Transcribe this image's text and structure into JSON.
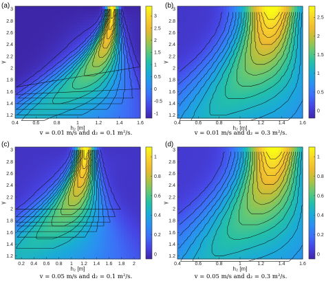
{
  "chart_data": [
    {
      "type": "heatmap",
      "panel": "(a)",
      "caption": "v = 0.01 m/s and d₂ = 0.1 m²/s.",
      "xlabel": "h₂ [m]",
      "ylabel": "γ",
      "xlim": [
        0.4,
        1.6
      ],
      "ylim": [
        1.15,
        3.05
      ],
      "xticks": [
        "0.4",
        "0.6",
        "0.8",
        "1",
        "1.2",
        "1.4",
        "1.6"
      ],
      "yticks": [
        "1.2",
        "1.4",
        "1.6",
        "1.8",
        "2",
        "2.2",
        "2.4",
        "2.6",
        "2.8",
        "3"
      ],
      "colorbar_ticks": [
        "-1",
        "-0.5",
        "0",
        "0.5",
        "1",
        "1.5",
        "2",
        "2.5",
        "3"
      ],
      "colorbar_range": [
        -1.2,
        3.4
      ],
      "peak": {
        "x": 1.33,
        "y": 3.0,
        "value": 3.3
      }
    },
    {
      "type": "heatmap",
      "panel": "(b)",
      "caption": "v = 0.01 m/s and d₂ = 0.3 m²/s.",
      "xlabel": "h₂ [m]",
      "ylabel": "γ",
      "xlim": [
        0.4,
        1.6
      ],
      "ylim": [
        1.15,
        3.05
      ],
      "xticks": [
        "0.4",
        "0.6",
        "0.8",
        "1",
        "1.2",
        "1.4",
        "1.6"
      ],
      "yticks": [
        "1.2",
        "1.4",
        "1.6",
        "1.8",
        "2",
        "2.2",
        "2.4",
        "2.6",
        "2.8",
        "3"
      ],
      "colorbar_ticks": [
        "0",
        "0.5",
        "1",
        "1.5",
        "2",
        "2.5"
      ],
      "colorbar_range": [
        -0.2,
        2.8
      ],
      "peak": {
        "x": 1.3,
        "y": 2.95,
        "value": 2.6
      }
    },
    {
      "type": "heatmap",
      "panel": "(c)",
      "caption": "v = 0.05 m/s and d₂ = 0.1 m²/s.",
      "xlabel": "h₂ [m]",
      "ylabel": "γ",
      "xlim": [
        0.1,
        2.1
      ],
      "ylim": [
        1.15,
        3.05
      ],
      "xticks": [
        "0.2",
        "0.4",
        "0.6",
        "0.8",
        "1",
        "1.2",
        "1.4",
        "1.6",
        "1.8",
        "2"
      ],
      "yticks": [
        "1.2",
        "1.4",
        "1.6",
        "1.8",
        "2",
        "2.2",
        "2.4",
        "2.6",
        "2.8",
        "3"
      ],
      "colorbar_ticks": [
        "0",
        "0.2",
        "0.4",
        "0.6",
        "0.8",
        "1"
      ],
      "colorbar_range": [
        -0.05,
        1.1
      ],
      "peak": {
        "x": 1.22,
        "y": 3.0,
        "value": 1.05
      }
    },
    {
      "type": "heatmap",
      "panel": "(d)",
      "caption": "v = 0.05 m/s and d₂ = 0.3 m²/s.",
      "xlabel": "h₂ [m]",
      "ylabel": "γ",
      "xlim": [
        0.4,
        1.6
      ],
      "ylim": [
        1.15,
        3.05
      ],
      "xticks": [
        "0.4",
        "0.6",
        "0.8",
        "1",
        "1.2",
        "1.4",
        "1.6"
      ],
      "yticks": [
        "1.2",
        "1.4",
        "1.6",
        "1.8",
        "2",
        "2.2",
        "2.4",
        "2.6",
        "2.8",
        "3"
      ],
      "colorbar_ticks": [
        "0",
        "0.2",
        "0.4",
        "0.6",
        "0.8",
        "1"
      ],
      "colorbar_range": [
        -0.05,
        1.1
      ],
      "peak": {
        "x": 1.32,
        "y": 2.97,
        "value": 1.05
      }
    }
  ],
  "colormap": [
    "#3e26a8",
    "#4743e2",
    "#3d6ef7",
    "#2b8ff2",
    "#1aabd8",
    "#23bfa9",
    "#63c875",
    "#b1c240",
    "#eeba30",
    "#f9d42c",
    "#f9fb15"
  ]
}
